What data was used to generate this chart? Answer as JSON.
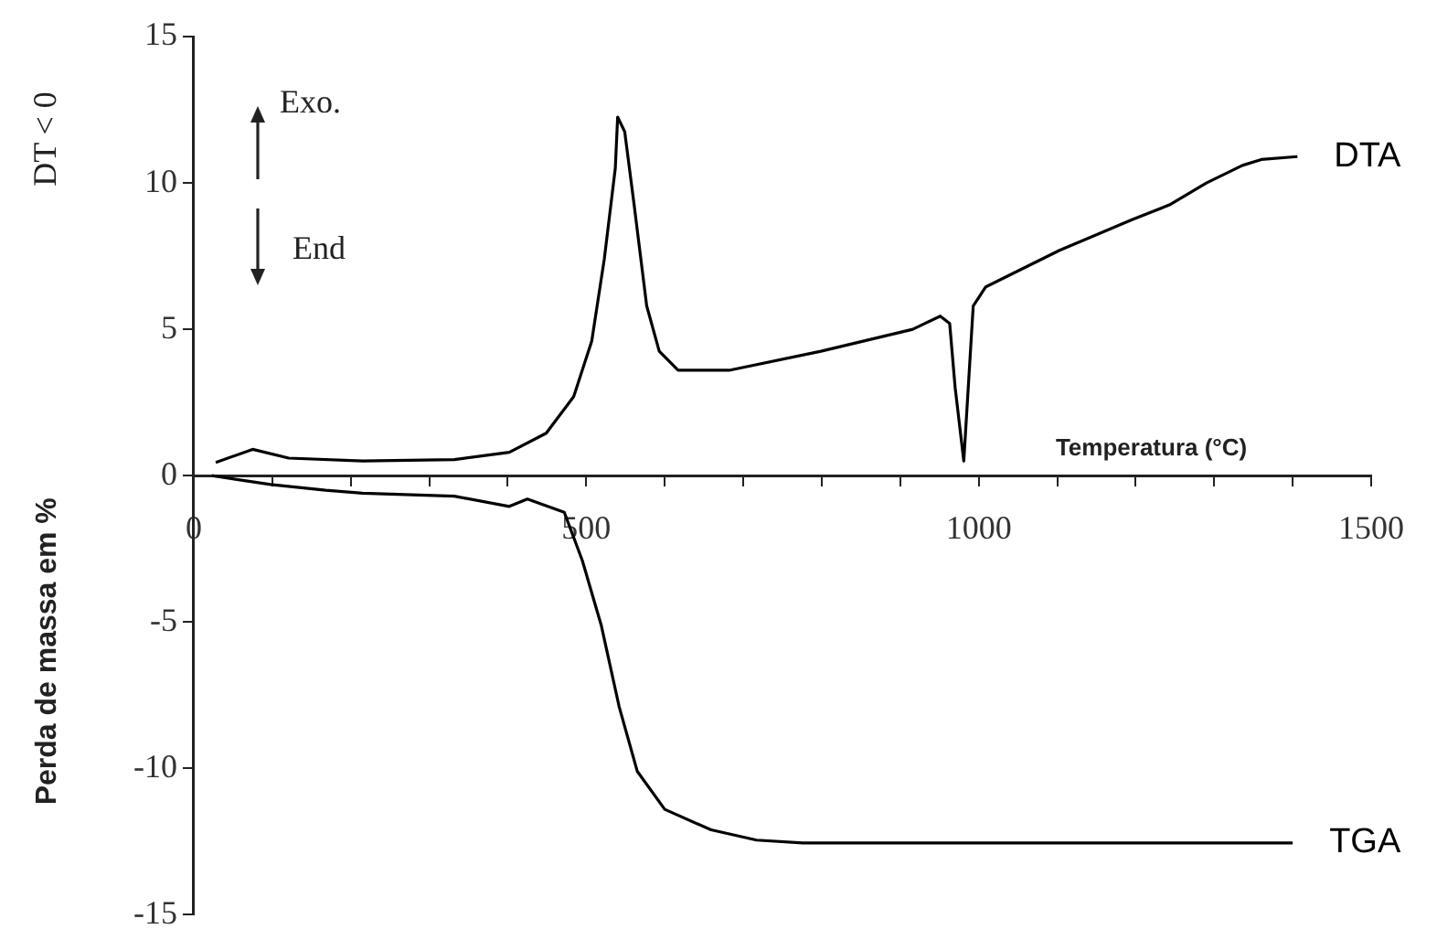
{
  "chart_data": {
    "type": "line",
    "xlabel": "Temperatura (°C)",
    "ylabel": "Perda de massa em %",
    "annotations": [
      "DT < 0",
      "Exo.",
      "End"
    ],
    "xlim": [
      0,
      1500
    ],
    "xticks": [
      0,
      {
        "value": 100,
        "label": null
      },
      {
        "value": 200,
        "label": null
      },
      {
        "value": 300,
        "label": null
      },
      {
        "value": 400,
        "label": null
      },
      500,
      {
        "value": 600,
        "label": null
      },
      {
        "value": 700,
        "label": null
      },
      {
        "value": 800,
        "label": null
      },
      {
        "value": 900,
        "label": null
      },
      1000,
      {
        "value": 1100,
        "label": null
      },
      {
        "value": 1200,
        "label": null
      },
      {
        "value": 1300,
        "label": null
      },
      {
        "value": 1400,
        "label": null
      },
      1500
    ],
    "ylim": [
      -15,
      15
    ],
    "yticks": [
      -15,
      -10,
      -5,
      0,
      5,
      10,
      15
    ],
    "grid": false,
    "legend": false,
    "marker": "none",
    "line_style": "solid",
    "series": [
      {
        "name": "DTA",
        "color": "#000000",
        "x": [
          28,
          75,
          121,
          215,
          332,
          402,
          449,
          484,
          507,
          523,
          537,
          540,
          549,
          561,
          577,
          593,
          617,
          682,
          799,
          916,
          951,
          963,
          970,
          981,
          993,
          1009,
          1103,
          1196,
          1243,
          1290,
          1336,
          1360,
          1406
        ],
        "values": [
          0.45,
          0.9,
          0.6,
          0.5,
          0.55,
          0.8,
          1.45,
          2.7,
          4.6,
          7.4,
          10.5,
          12.25,
          11.75,
          9.25,
          5.8,
          4.25,
          3.6,
          3.6,
          4.25,
          5.0,
          5.45,
          5.2,
          3.0,
          0.5,
          5.8,
          6.45,
          7.7,
          8.75,
          9.25,
          10.0,
          10.6,
          10.8,
          10.9
        ]
      },
      {
        "name": "TGA",
        "color": "#000000",
        "x": [
          23,
          98,
          168,
          215,
          332,
          402,
          425,
          472,
          495,
          519,
          542,
          565,
          600,
          659,
          717,
          776,
          1400
        ],
        "values": [
          0,
          -0.3,
          -0.5,
          -0.6,
          -0.7,
          -1.05,
          -0.8,
          -1.25,
          -2.9,
          -5.1,
          -7.9,
          -10.1,
          -11.4,
          -12.1,
          -12.45,
          -12.55,
          -12.55
        ]
      }
    ]
  }
}
